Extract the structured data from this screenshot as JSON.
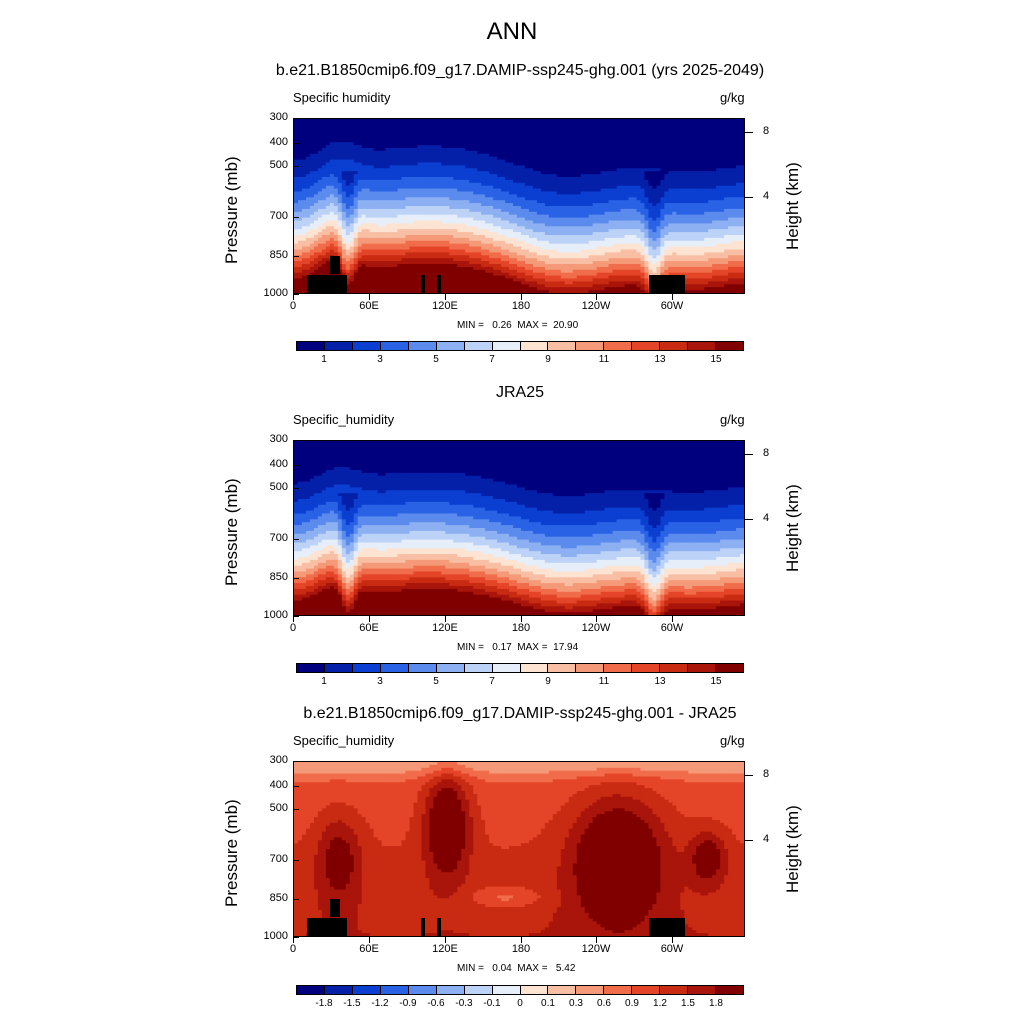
{
  "title": "ANN",
  "panels": [
    {
      "title": "b.e21.B1850cmip6.f09_g17.DAMIP-ssp245-ghg.001 (yrs 2025-2049)",
      "variable": "Specific humidity",
      "units": "g/kg",
      "ylabel": "Pressure (mb)",
      "ylabel_right": "Height (km)",
      "minmax": "MIN =   0.26  MAX =  20.90"
    },
    {
      "title": "JRA25",
      "variable": "Specific_humidity",
      "units": "g/kg",
      "ylabel": "Pressure (mb)",
      "ylabel_right": "Height (km)",
      "minmax": "MIN =   0.17  MAX =  17.94"
    },
    {
      "title": "b.e21.B1850cmip6.f09_g17.DAMIP-ssp245-ghg.001 - JRA25",
      "variable": "Specific_humidity",
      "units": "g/kg",
      "ylabel": "Pressure (mb)",
      "ylabel_right": "Height (km)",
      "minmax": "MIN =   0.04  MAX =   5.42"
    }
  ],
  "axes": {
    "pressure_ticks": [
      "300",
      "400",
      "500",
      "700",
      "850",
      "1000"
    ],
    "longitude_ticks": [
      "0",
      "60E",
      "120E",
      "180",
      "120W",
      "60W"
    ],
    "height_ticks": [
      "8",
      "4"
    ]
  },
  "colorbars": {
    "abs_labels": [
      "1",
      "3",
      "5",
      "7",
      "9",
      "11",
      "13",
      "15"
    ],
    "abs_colors": [
      "#00007f",
      "#0520a8",
      "#0a3fd1",
      "#2a62e6",
      "#5b8bed",
      "#8cb0f2",
      "#bcd2f7",
      "#e6eef9",
      "#fde3d2",
      "#f8bfa4",
      "#f59a78",
      "#f06c4a",
      "#e44428",
      "#c92a12",
      "#a9150a",
      "#800000"
    ],
    "diff_labels": [
      "-1.8",
      "-1.5",
      "-1.2",
      "-0.9",
      "-0.6",
      "-0.3",
      "-0.1",
      "0",
      "0.1",
      "0.3",
      "0.6",
      "0.9",
      "1.2",
      "1.5",
      "1.8"
    ],
    "diff_colors": [
      "#00007f",
      "#0520a8",
      "#0a3fd1",
      "#2a62e6",
      "#5b8bed",
      "#8cb0f2",
      "#bcd2f7",
      "#e6eef9",
      "#fde3d2",
      "#f8bfa4",
      "#f59a78",
      "#f06c4a",
      "#e44428",
      "#c92a12",
      "#a9150a",
      "#800000"
    ]
  },
  "chart_data": [
    {
      "type": "heatmap",
      "title": "b.e21.B1850cmip6.f09_g17.DAMIP-ssp245-ghg.001 (yrs 2025-2049)",
      "xlabel": "",
      "ylabel": "Pressure (mb)",
      "x_ticks": [
        "0",
        "60E",
        "120E",
        "180",
        "120W",
        "60W"
      ],
      "y_ticks": [
        300,
        400,
        500,
        700,
        850,
        1000
      ],
      "ylim": [
        1000,
        300
      ],
      "units": "g/kg",
      "min": 0.26,
      "max": 20.9,
      "levels": [
        1,
        3,
        5,
        7,
        9,
        11,
        13,
        15
      ]
    },
    {
      "type": "heatmap",
      "title": "JRA25",
      "xlabel": "",
      "ylabel": "Pressure (mb)",
      "x_ticks": [
        "0",
        "60E",
        "120E",
        "180",
        "120W",
        "60W"
      ],
      "y_ticks": [
        300,
        400,
        500,
        700,
        850,
        1000
      ],
      "ylim": [
        1000,
        300
      ],
      "units": "g/kg",
      "min": 0.17,
      "max": 17.94,
      "levels": [
        1,
        3,
        5,
        7,
        9,
        11,
        13,
        15
      ]
    },
    {
      "type": "heatmap",
      "title": "b.e21.B1850cmip6.f09_g17.DAMIP-ssp245-ghg.001 - JRA25",
      "xlabel": "",
      "ylabel": "Pressure (mb)",
      "x_ticks": [
        "0",
        "60E",
        "120E",
        "180",
        "120W",
        "60W"
      ],
      "y_ticks": [
        300,
        400,
        500,
        700,
        850,
        1000
      ],
      "ylim": [
        1000,
        300
      ],
      "units": "g/kg",
      "min": 0.04,
      "max": 5.42,
      "levels": [
        -1.8,
        -1.5,
        -1.2,
        -0.9,
        -0.6,
        -0.3,
        -0.1,
        0,
        0.1,
        0.3,
        0.6,
        0.9,
        1.2,
        1.5,
        1.8
      ]
    }
  ]
}
